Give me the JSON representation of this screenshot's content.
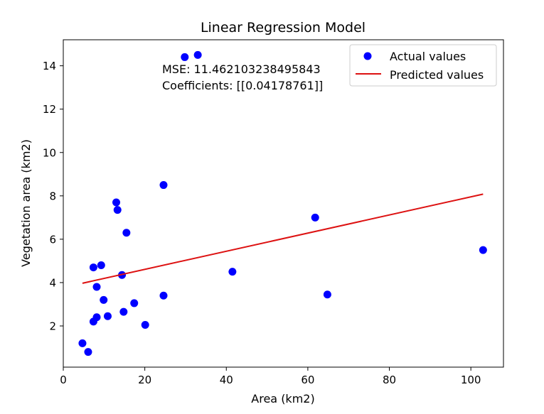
{
  "chart_data": {
    "type": "scatter",
    "title": "Linear Regression Model",
    "xlabel": "Area (km2)",
    "ylabel": "Vegetation area (km2)",
    "xlim": [
      0,
      108
    ],
    "ylim": [
      0.1,
      15.2
    ],
    "xticks": [
      0,
      20,
      40,
      60,
      80,
      100
    ],
    "yticks": [
      2,
      4,
      6,
      8,
      10,
      12,
      14
    ],
    "xtick_labels": [
      "0",
      "20",
      "40",
      "60",
      "80",
      "100"
    ],
    "ytick_labels": [
      "2",
      "4",
      "6",
      "8",
      "10",
      "12",
      "14"
    ],
    "grid": false,
    "legend_position": "top-right",
    "series": [
      {
        "name": "Actual values",
        "kind": "scatter",
        "color": "#0000ff",
        "points": [
          [
            4.7,
            1.2
          ],
          [
            6.1,
            0.8
          ],
          [
            7.4,
            4.7
          ],
          [
            7.4,
            2.2
          ],
          [
            8.2,
            3.8
          ],
          [
            8.2,
            2.4
          ],
          [
            9.3,
            4.8
          ],
          [
            9.9,
            3.2
          ],
          [
            10.9,
            2.45
          ],
          [
            13.0,
            7.7
          ],
          [
            13.3,
            7.35
          ],
          [
            14.4,
            4.35
          ],
          [
            14.8,
            2.65
          ],
          [
            15.5,
            6.3
          ],
          [
            17.4,
            3.05
          ],
          [
            20.1,
            2.05
          ],
          [
            24.6,
            8.5
          ],
          [
            24.6,
            3.4
          ],
          [
            29.8,
            14.4
          ],
          [
            33.0,
            14.5
          ],
          [
            41.5,
            4.5
          ],
          [
            61.8,
            7.0
          ],
          [
            64.8,
            3.45
          ],
          [
            103.0,
            5.5
          ]
        ]
      },
      {
        "name": "Predicted values",
        "kind": "line",
        "color": "#dd1111",
        "points": [
          [
            4.7,
            3.97
          ],
          [
            103.0,
            8.08
          ]
        ]
      }
    ],
    "annotations": [
      "MSE: 11.462103238495843",
      "Coefficients: [[0.04178761]]"
    ]
  }
}
